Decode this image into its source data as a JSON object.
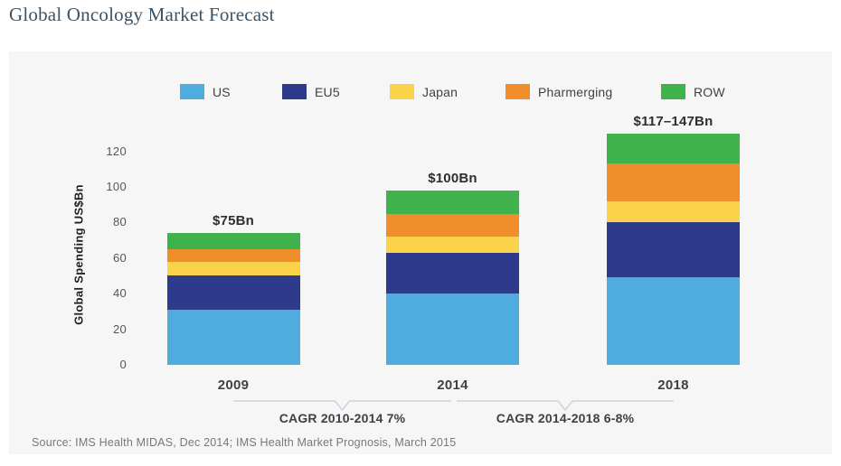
{
  "page": {
    "title": "Global Oncology Market Forecast"
  },
  "chart": {
    "source": "Source: IMS Health MIDAS, Dec 2014; IMS Health Market Prognosis, March 2015"
  },
  "chart_data": {
    "type": "bar",
    "stacked": true,
    "title": "Global Oncology Market Forecast",
    "categories": [
      "2009",
      "2014",
      "2018"
    ],
    "series": [
      {
        "name": "US",
        "color": "#4facdf",
        "values": [
          31,
          40,
          49
        ]
      },
      {
        "name": "EU5",
        "color": "#2e3a8b",
        "values": [
          19,
          23,
          31
        ]
      },
      {
        "name": "Japan",
        "color": "#fbd34b",
        "values": [
          8,
          9,
          12
        ]
      },
      {
        "name": "Pharmerging",
        "color": "#f08e2b",
        "values": [
          7,
          13,
          21
        ]
      },
      {
        "name": "ROW",
        "color": "#3fb24c",
        "values": [
          9,
          13,
          17
        ]
      }
    ],
    "totals_labels": [
      "$75Bn",
      "$100Bn",
      "$117–147Bn"
    ],
    "ylabel": "Global Spending US$Bn",
    "xlabel": "",
    "yticks": [
      0,
      20,
      40,
      60,
      80,
      100,
      120
    ],
    "ylim": [
      0,
      132
    ],
    "grid": false,
    "legend_position": "top",
    "annotations": [
      {
        "label": "CAGR 2010-2014 7%",
        "from": "2009",
        "to": "2014"
      },
      {
        "label": "CAGR 2014-2018 6-8%",
        "from": "2014",
        "to": "2018"
      }
    ],
    "brace_color": "#c9d4de"
  }
}
